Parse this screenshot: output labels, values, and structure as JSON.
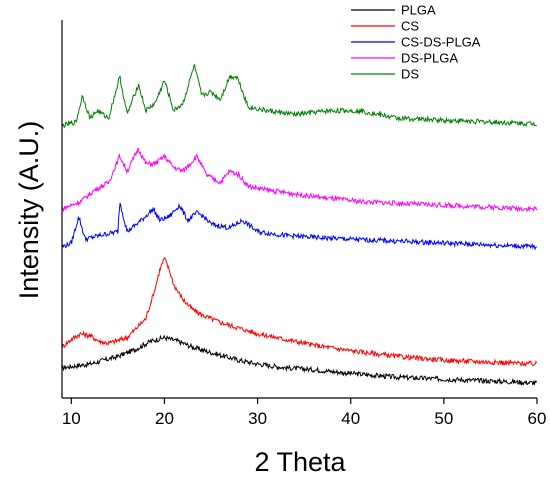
{
  "chart_data": {
    "type": "line",
    "xlabel": "2 Theta",
    "ylabel": "Intensity (A.U.)",
    "xlim": [
      9,
      60
    ],
    "ylim": [
      0,
      100
    ],
    "x_ticks": [
      10,
      20,
      30,
      40,
      50,
      60
    ],
    "y_ticks_shown": false,
    "grid": false,
    "legend_position": "top-right",
    "series": [
      {
        "name": "PLGA",
        "color": "#000000",
        "x": [
          9,
          12,
          15,
          17,
          18.5,
          20,
          21.5,
          23,
          25,
          28,
          30,
          33,
          36,
          40,
          45,
          50,
          55,
          60
        ],
        "values": [
          8,
          9,
          11,
          13,
          15,
          16,
          15,
          13.5,
          12,
          10,
          9,
          8,
          7.5,
          6.5,
          5.5,
          5,
          4.5,
          4
        ]
      },
      {
        "name": "CS",
        "color": "#ff0000",
        "x": [
          9,
          10,
          11,
          12,
          13,
          14,
          16,
          18,
          19,
          19.5,
          20,
          20.5,
          21,
          22,
          23,
          24,
          26,
          28,
          30,
          33,
          36,
          40,
          45,
          50,
          55,
          60
        ],
        "values": [
          13.5,
          15.5,
          17,
          16.5,
          15,
          14.5,
          16,
          21,
          29,
          34,
          37,
          34,
          30,
          26,
          23.5,
          22,
          20,
          18.5,
          17,
          15.5,
          14,
          12.5,
          11,
          10,
          9.5,
          9
        ]
      },
      {
        "name": "CS-DS-PLGA",
        "color": "#0000ff",
        "x": [
          9,
          10,
          10.8,
          11.5,
          13,
          15,
          15.2,
          16,
          17.5,
          18.8,
          19.5,
          20.5,
          21.6,
          22.5,
          23.5,
          24.2,
          25,
          27,
          28.4,
          30,
          33,
          36,
          40,
          45,
          50,
          55,
          60
        ],
        "values": [
          40,
          41,
          48,
          42,
          43,
          44,
          52,
          44,
          47,
          50,
          47,
          48,
          51,
          47,
          49,
          48,
          46,
          45,
          47,
          44,
          43,
          42.5,
          42,
          41.5,
          41,
          40.5,
          40
        ]
      },
      {
        "name": "DS-PLGA",
        "color": "#ff00ff",
        "x": [
          9,
          11,
          12.5,
          14,
          15.2,
          16,
          17.2,
          18,
          19,
          20,
          21,
          22,
          23.5,
          24.5,
          26,
          27,
          28,
          29,
          31,
          34,
          37,
          41,
          45,
          50,
          55,
          60
        ],
        "values": [
          50,
          52,
          55,
          57,
          64,
          60,
          66,
          62,
          62,
          64,
          61,
          60,
          64,
          59,
          57,
          60,
          59,
          56,
          55,
          54,
          53,
          52,
          51.5,
          51,
          50.5,
          50
        ]
      },
      {
        "name": "DS",
        "color": "#008000",
        "x": [
          9,
          10.5,
          11.2,
          12,
          12.8,
          14,
          15.2,
          16,
          17.2,
          18,
          19,
          20,
          21,
          22,
          23.2,
          23.5,
          24,
          25,
          26,
          27,
          27.8,
          29,
          31,
          34,
          37.8,
          41,
          45,
          50,
          55,
          60
        ],
        "values": [
          72,
          73,
          80,
          74,
          76,
          74,
          85,
          75,
          83,
          76,
          78,
          84,
          76,
          78,
          88,
          85,
          80,
          81,
          79,
          85,
          85,
          77,
          76,
          75,
          76,
          76,
          74,
          73.5,
          73,
          72.5
        ]
      }
    ]
  }
}
